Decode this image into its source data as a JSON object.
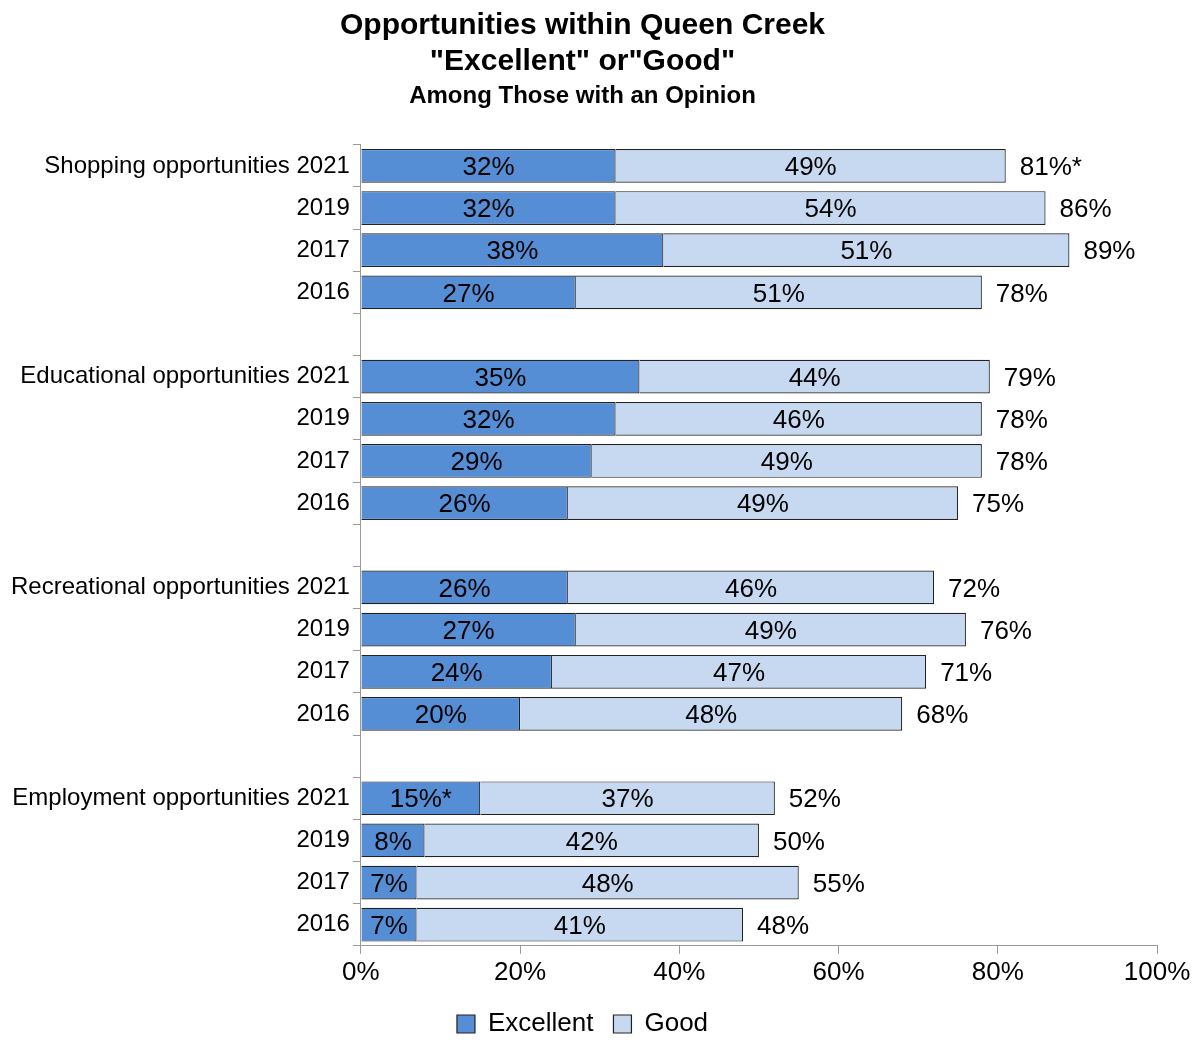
{
  "chart_data": {
    "type": "bar",
    "orientation": "horizontal",
    "stacked": true,
    "title": "Opportunities within Queen Creek\n\"Excellent\" or\"Good\"",
    "subtitle": "Among Those with an Opinion",
    "categories": [
      "Shopping opportunities 2021",
      "2019",
      "2017",
      "2016",
      null,
      "Educational opportunities 2021",
      "2019",
      "2017",
      "2016",
      null,
      "Recreational opportunities 2021",
      "2019",
      "2017",
      "2016",
      null,
      "Employment opportunities 2021",
      "2019",
      "2017",
      "2016"
    ],
    "series": [
      {
        "name": "Excellent",
        "color": "#558ed5",
        "values": [
          32,
          32,
          38,
          27,
          null,
          35,
          32,
          29,
          26,
          null,
          26,
          27,
          24,
          20,
          null,
          15,
          8,
          7,
          7
        ],
        "value_labels": [
          "32%",
          "32%",
          "38%",
          "27%",
          null,
          "35%",
          "32%",
          "29%",
          "26%",
          null,
          "26%",
          "27%",
          "24%",
          "20%",
          null,
          "15%*",
          "8%",
          "7%",
          "7%"
        ]
      },
      {
        "name": "Good",
        "color": "#c6d9f1",
        "values": [
          49,
          54,
          51,
          51,
          null,
          44,
          46,
          49,
          49,
          null,
          46,
          49,
          47,
          48,
          null,
          37,
          42,
          48,
          41
        ],
        "value_labels": [
          "49%",
          "54%",
          "51%",
          "51%",
          null,
          "44%",
          "46%",
          "49%",
          "49%",
          null,
          "46%",
          "49%",
          "47%",
          "48%",
          null,
          "37%",
          "42%",
          "48%",
          "41%"
        ]
      }
    ],
    "totals": [
      "81%*",
      "86%",
      "89%",
      "78%",
      null,
      "79%",
      "78%",
      "78%",
      "75%",
      null,
      "72%",
      "76%",
      "71%",
      "68%",
      null,
      "52%",
      "50%",
      "55%",
      "48%"
    ],
    "xlim": [
      0,
      100
    ],
    "xticks": [
      {
        "value": 0,
        "label": "0%"
      },
      {
        "value": 20,
        "label": "20%"
      },
      {
        "value": 40,
        "label": "40%"
      },
      {
        "value": 60,
        "label": "60%"
      },
      {
        "value": 80,
        "label": "80%"
      },
      {
        "value": 100,
        "label": "100%"
      }
    ],
    "grid": false,
    "legend": "bottom"
  }
}
